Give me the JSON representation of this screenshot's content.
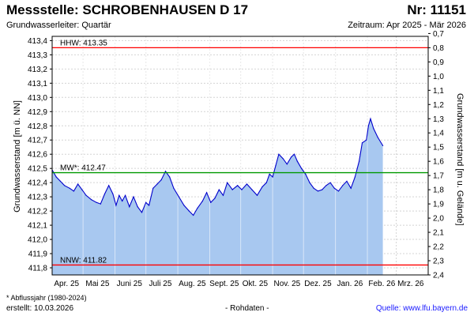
{
  "header": {
    "title": "Messstelle: SCHROBENHAUSEN D 17",
    "nr": "Nr: 11151",
    "aquifer": "Grundwasserleiter: Quartär",
    "period": "Zeitraum: Apr 2025 - Mär 2026"
  },
  "footer": {
    "footnote": "* Abflussjahr (1980-2024)",
    "created": "erstellt:  10.03.2026",
    "rawdata": "- Rohdaten -",
    "source": "Quelle:  www.lfu.bayern.de"
  },
  "chart_data": {
    "type": "area",
    "ylabel": "Grundwasserstand [m ü. NN]",
    "ylabel_right": "Grundwasserstand [m u. Gelände]",
    "ylim": [
      411.75,
      413.43
    ],
    "y_ticks": [
      "413,4",
      "413,3",
      "413,2",
      "413,1",
      "413,0",
      "412,9",
      "412,8",
      "412,7",
      "412,6",
      "412,5",
      "412,4",
      "412,3",
      "412,2",
      "412,1",
      "412,0",
      "411,9",
      "411,8"
    ],
    "y_tick_values": [
      413.4,
      413.3,
      413.2,
      413.1,
      413.0,
      412.9,
      412.8,
      412.7,
      412.6,
      412.5,
      412.4,
      412.3,
      412.2,
      412.1,
      412.0,
      411.9,
      411.8
    ],
    "y2_ticks": [
      "0,7",
      "0,8",
      "0,9",
      "1,0",
      "1,1",
      "1,2",
      "1,3",
      "1,4",
      "1,5",
      "1,6",
      "1,7",
      "1,8",
      "1,9",
      "2,0",
      "2,1",
      "2,2",
      "2,3",
      "2,4"
    ],
    "y2_tick_values": [
      0.7,
      0.8,
      0.9,
      1.0,
      1.1,
      1.2,
      1.3,
      1.4,
      1.5,
      1.6,
      1.7,
      1.8,
      1.9,
      2.0,
      2.1,
      2.2,
      2.3,
      2.4
    ],
    "ground_level": 414.15,
    "x_range": [
      "2025-04-01",
      "2026-03-31"
    ],
    "x_ticks": [
      "Apr. 25",
      "Mai 25",
      "Juni 25",
      "Juli 25",
      "Aug. 25",
      "Sept. 25",
      "Okt. 25",
      "Nov. 25",
      "Dez. 25",
      "Jan. 26",
      "Feb. 26",
      "Mrz. 26"
    ],
    "x_tick_dates": [
      "2025-04-15",
      "2025-05-15",
      "2025-06-15",
      "2025-07-15",
      "2025-08-15",
      "2025-09-15",
      "2025-10-15",
      "2025-11-15",
      "2025-12-15",
      "2026-01-15",
      "2026-02-15",
      "2026-03-15"
    ],
    "month_boundaries": [
      "2025-05-01",
      "2025-06-01",
      "2025-07-01",
      "2025-08-01",
      "2025-09-01",
      "2025-10-01",
      "2025-11-01",
      "2025-12-01",
      "2026-01-01",
      "2026-02-01",
      "2026-03-01"
    ],
    "reference_lines": [
      {
        "label": "HHW: 413.35",
        "value": 413.35,
        "color": "#ff0000"
      },
      {
        "label": "MW*: 412.47",
        "value": 412.47,
        "color": "#009900"
      },
      {
        "label": "NNW: 411.82",
        "value": 411.82,
        "color": "#ff0000"
      }
    ],
    "series": [
      {
        "color": "#0000cc",
        "fill": "#a8c8f0",
        "points": [
          [
            "2025-04-01",
            412.49
          ],
          [
            "2025-04-05",
            412.44
          ],
          [
            "2025-04-09",
            412.41
          ],
          [
            "2025-04-13",
            412.38
          ],
          [
            "2025-04-18",
            412.36
          ],
          [
            "2025-04-22",
            412.34
          ],
          [
            "2025-04-26",
            412.39
          ],
          [
            "2025-04-30",
            412.35
          ],
          [
            "2025-05-04",
            412.31
          ],
          [
            "2025-05-09",
            412.28
          ],
          [
            "2025-05-14",
            412.26
          ],
          [
            "2025-05-18",
            412.25
          ],
          [
            "2025-05-22",
            412.32
          ],
          [
            "2025-05-26",
            412.38
          ],
          [
            "2025-05-30",
            412.32
          ],
          [
            "2025-06-02",
            412.24
          ],
          [
            "2025-06-05",
            412.31
          ],
          [
            "2025-06-08",
            412.27
          ],
          [
            "2025-06-11",
            412.31
          ],
          [
            "2025-06-15",
            412.23
          ],
          [
            "2025-06-19",
            412.3
          ],
          [
            "2025-06-23",
            412.23
          ],
          [
            "2025-06-27",
            412.19
          ],
          [
            "2025-07-01",
            412.26
          ],
          [
            "2025-07-04",
            412.24
          ],
          [
            "2025-07-08",
            412.36
          ],
          [
            "2025-07-12",
            412.39
          ],
          [
            "2025-07-16",
            412.42
          ],
          [
            "2025-07-20",
            412.48
          ],
          [
            "2025-07-24",
            412.44
          ],
          [
            "2025-07-28",
            412.36
          ],
          [
            "2025-08-02",
            412.3
          ],
          [
            "2025-08-07",
            412.24
          ],
          [
            "2025-08-12",
            412.2
          ],
          [
            "2025-08-16",
            412.17
          ],
          [
            "2025-08-20",
            412.22
          ],
          [
            "2025-08-25",
            412.27
          ],
          [
            "2025-08-29",
            412.33
          ],
          [
            "2025-09-02",
            412.26
          ],
          [
            "2025-09-06",
            412.29
          ],
          [
            "2025-09-10",
            412.35
          ],
          [
            "2025-09-14",
            412.31
          ],
          [
            "2025-09-18",
            412.4
          ],
          [
            "2025-09-23",
            412.35
          ],
          [
            "2025-09-28",
            412.38
          ],
          [
            "2025-10-02",
            412.35
          ],
          [
            "2025-10-07",
            412.39
          ],
          [
            "2025-10-12",
            412.35
          ],
          [
            "2025-10-17",
            412.31
          ],
          [
            "2025-10-22",
            412.37
          ],
          [
            "2025-10-26",
            412.4
          ],
          [
            "2025-10-29",
            412.46
          ],
          [
            "2025-11-01",
            412.44
          ],
          [
            "2025-11-04",
            412.52
          ],
          [
            "2025-11-07",
            412.6
          ],
          [
            "2025-11-11",
            412.57
          ],
          [
            "2025-11-15",
            412.53
          ],
          [
            "2025-11-19",
            412.58
          ],
          [
            "2025-11-22",
            412.6
          ],
          [
            "2025-11-25",
            412.55
          ],
          [
            "2025-11-29",
            412.5
          ],
          [
            "2025-12-03",
            412.46
          ],
          [
            "2025-12-07",
            412.4
          ],
          [
            "2025-12-11",
            412.36
          ],
          [
            "2025-12-15",
            412.34
          ],
          [
            "2025-12-19",
            412.35
          ],
          [
            "2025-12-23",
            412.38
          ],
          [
            "2025-12-27",
            412.4
          ],
          [
            "2025-12-31",
            412.36
          ],
          [
            "2026-01-04",
            412.34
          ],
          [
            "2026-01-08",
            412.38
          ],
          [
            "2026-01-12",
            412.41
          ],
          [
            "2026-01-16",
            412.36
          ],
          [
            "2026-01-20",
            412.44
          ],
          [
            "2026-01-24",
            412.55
          ],
          [
            "2026-01-27",
            412.68
          ],
          [
            "2026-01-31",
            412.7
          ],
          [
            "2026-02-02",
            412.8
          ],
          [
            "2026-02-04",
            412.85
          ],
          [
            "2026-02-07",
            412.78
          ],
          [
            "2026-02-11",
            412.72
          ],
          [
            "2026-02-16",
            412.66
          ]
        ]
      }
    ],
    "grid": true
  }
}
